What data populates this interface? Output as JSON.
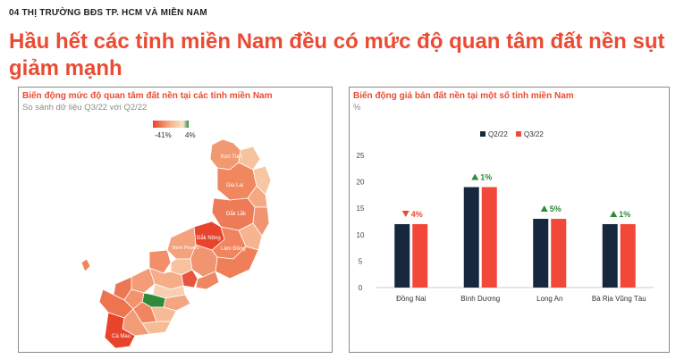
{
  "page": {
    "section_tag": "04 THỊ TRƯỜNG BĐS TP. HCM VÀ MIỀN NAM",
    "headline": "Hầu hết các tỉnh miền Nam đều có mức độ quan tâm đất nền sụt giảm mạnh"
  },
  "map_panel": {
    "title": "Biến động mức độ quan tâm đất nền tại các tỉnh miền Nam",
    "subtitle": "So sánh dữ liệu Q3/22 với Q2/22",
    "legend_min": "-41%",
    "legend_max": "4%",
    "colors": {
      "low": "#e8432b",
      "mid": "#f6c29c",
      "high": "#f3e6c8",
      "positive": "#2e8b3a"
    },
    "region_labels": [
      "Kon Tum",
      "Gia Lai",
      "Đắk Lắk",
      "Đắk Nông",
      "Bình Phước",
      "Lâm Đồng",
      "Cà Mau"
    ]
  },
  "chart_data": {
    "type": "bar",
    "title": "Biến động giá bán đất nền tại một số tỉnh miền Nam",
    "ylabel": "%",
    "categories": [
      "Đồng Nai",
      "Bình Dương",
      "Long An",
      "Bà Rịa Vũng Tàu"
    ],
    "series": [
      {
        "name": "Q2/22",
        "values": [
          12,
          19,
          13,
          12
        ],
        "color": "#17283e"
      },
      {
        "name": "Q3/22",
        "values": [
          12,
          19,
          13,
          12
        ],
        "color": "#f2483a"
      }
    ],
    "annotations": [
      {
        "text": "4%",
        "direction": "down"
      },
      {
        "text": "1%",
        "direction": "up"
      },
      {
        "text": "5%",
        "direction": "up"
      },
      {
        "text": "1%",
        "direction": "up"
      }
    ],
    "annotation_colors": {
      "up": "#2e8b3a",
      "down": "#ea4b32"
    },
    "ylim": [
      0,
      25
    ],
    "yticks": [
      0,
      5,
      10,
      15,
      20,
      25
    ],
    "legend_position": "top-center",
    "grid": false
  }
}
